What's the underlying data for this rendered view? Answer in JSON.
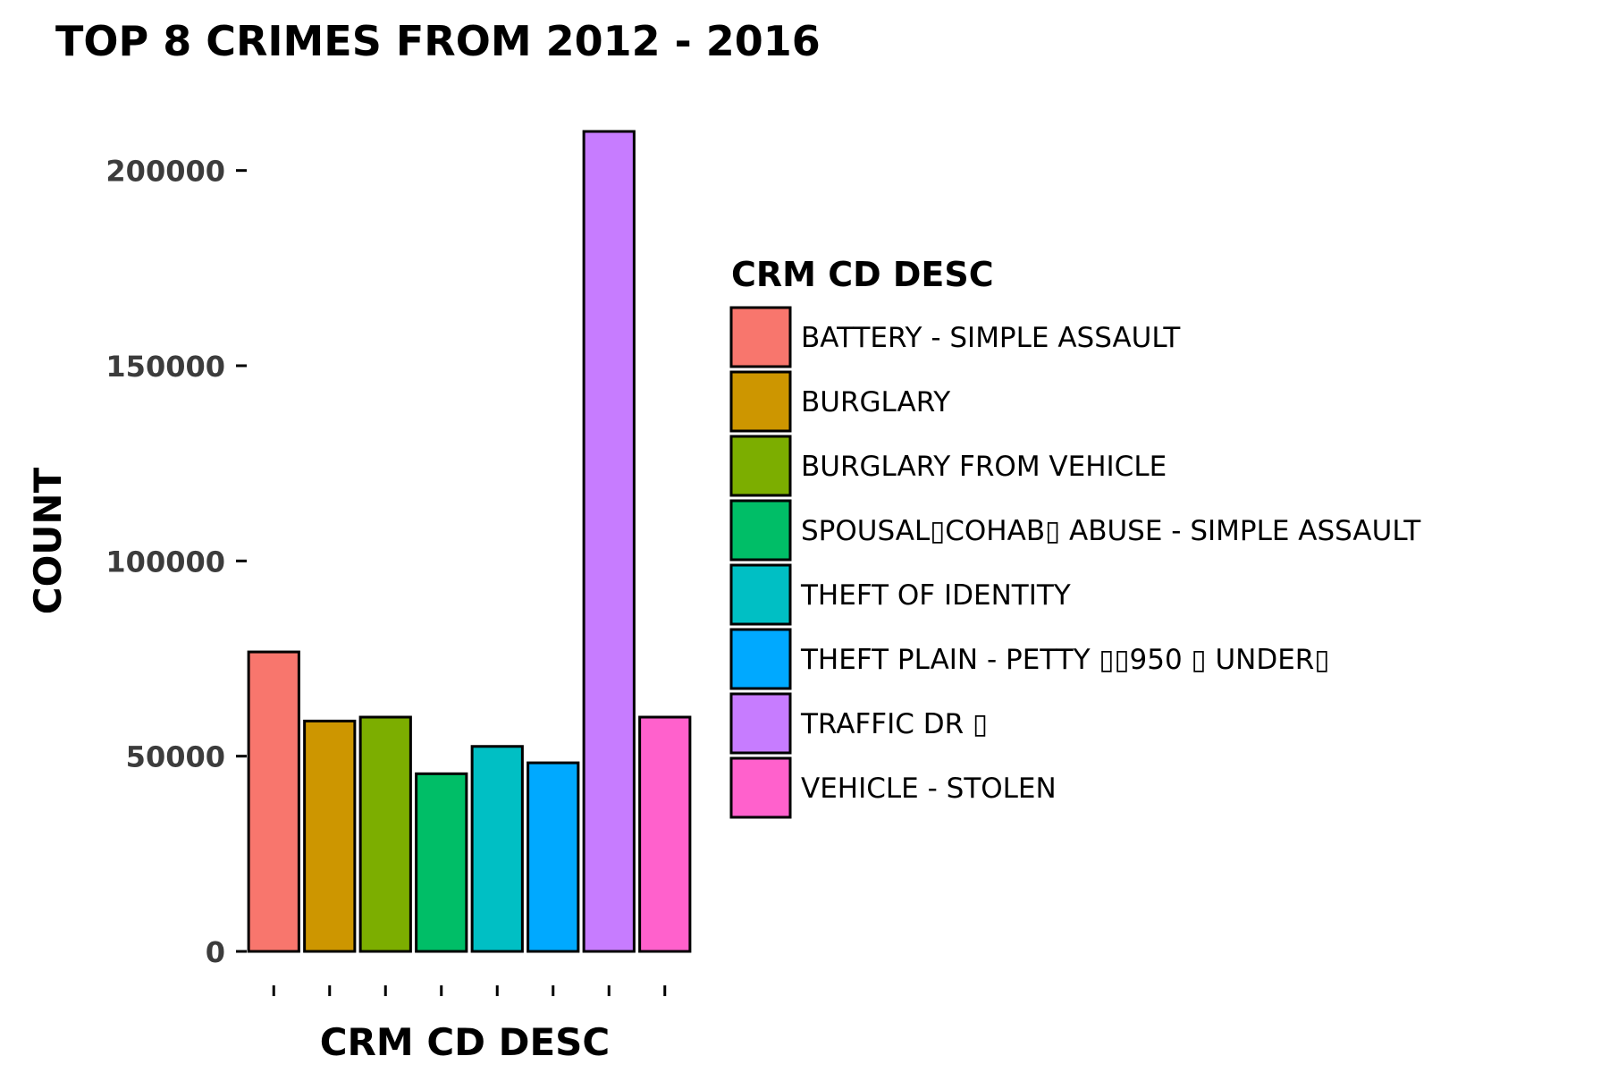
{
  "chart_data": {
    "type": "bar",
    "title": "TOP 8 CRIMES FROM 2012 - 2016",
    "xlabel": "CRM CD DESC",
    "ylabel": "COUNT",
    "ylim": [
      0,
      210000
    ],
    "yticks": [
      0,
      50000,
      100000,
      150000,
      200000
    ],
    "grid": false,
    "legend": {
      "title": "CRM CD DESC",
      "position": "right"
    },
    "categories": [
      "BATTERY - SIMPLE ASSAULT",
      "BURGLARY",
      "BURGLARY FROM VEHICLE",
      "SPOUSAL▯COHAB▯ ABUSE - SIMPLE ASSAULT",
      "THEFT OF IDENTITY",
      "THEFT PLAIN - PETTY ▯▯950 ▯ UNDER▯",
      "TRAFFIC DR ▯",
      "VEHICLE - STOLEN"
    ],
    "values": [
      76700,
      59000,
      60000,
      45500,
      52500,
      48300,
      210000,
      60000
    ],
    "colors": [
      "#F8766D",
      "#CD9600",
      "#7CAE00",
      "#00BE67",
      "#00BFC4",
      "#00A9FF",
      "#C77CFF",
      "#FF61CC"
    ]
  }
}
